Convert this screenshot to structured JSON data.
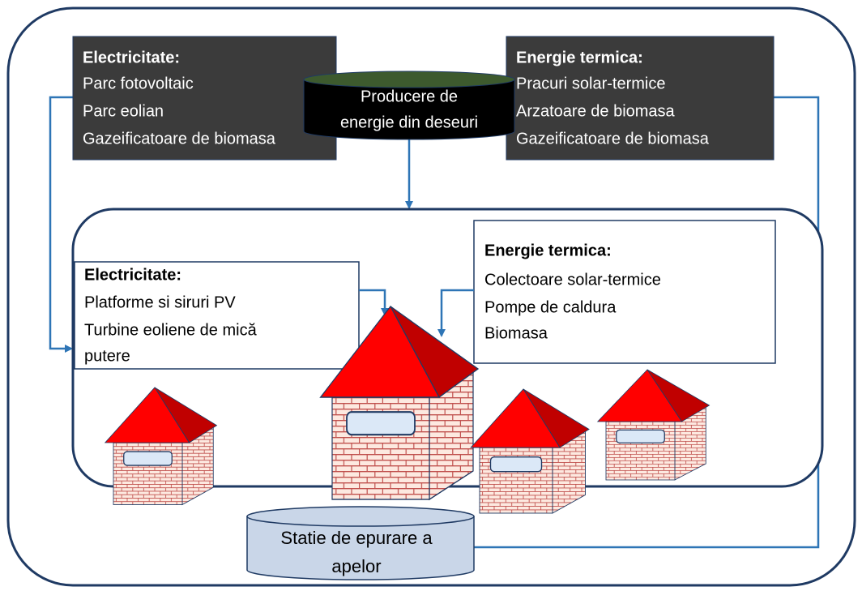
{
  "regional_electricity": {
    "title": "Electricitate:",
    "items": [
      "Parc fotovoltaic",
      "Parc eolian",
      "Gazeificatoare de biomasa"
    ]
  },
  "regional_thermal": {
    "title": "Energie termica:",
    "items": [
      "Pracuri solar-termice",
      "Arzatoare de biomasa",
      "Gazeificatoare de biomasa"
    ]
  },
  "waste_energy": {
    "lines": [
      "Producere de",
      "energie din deseuri"
    ]
  },
  "local_electricity": {
    "title": "Electricitate:",
    "items": [
      "Platforme si siruri PV",
      "Turbine eoliene de mică",
      "putere"
    ]
  },
  "local_thermal": {
    "title": "Energie termica:",
    "items": [
      "Colectoare solar-termice",
      "Pompe de caldura",
      "Biomasa"
    ]
  },
  "wastewater": {
    "lines": [
      "Statie de epurare a",
      "apelor"
    ]
  }
}
